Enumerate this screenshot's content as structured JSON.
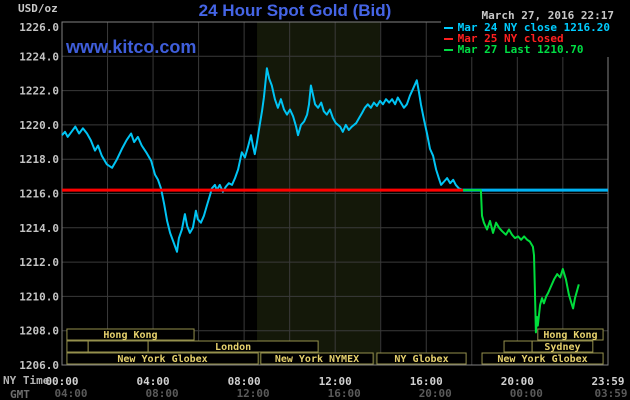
{
  "header": {
    "units_label": "USD/oz",
    "title": "24 Hour Spot Gold (Bid)",
    "datetime": "March 27, 2016 22:17",
    "watermark": "www.kitco.com"
  },
  "colors": {
    "title": "#4565e6",
    "logo": "#3f5edb",
    "background": "#000000",
    "plot_border": "#828282",
    "grid": "#3a3a3a",
    "band": "#141809",
    "y_tick": "#c4c4c4",
    "ny_tick": "#d0d0d0",
    "gmt_tick": "#5a5a5a",
    "session_border": "#95904d",
    "session_text": "#e6d16d"
  },
  "legend": [
    {
      "label": "Mar 24 NY close 1216.20",
      "color": "#00ccff"
    },
    {
      "label": "Mar 25 NY closed",
      "color": "#ff2020"
    },
    {
      "label": "Mar 27 Last 1210.70",
      "color": "#00dd44"
    }
  ],
  "axis": {
    "ny_time_label": "NY Time",
    "gmt_label": "GMT",
    "tick_minutes": [
      0,
      240,
      480,
      720,
      960,
      1200,
      1439
    ],
    "ny_ticks": [
      "00:00",
      "04:00",
      "08:00",
      "12:00",
      "16:00",
      "20:00",
      "23:59"
    ],
    "gmt_ticks": [
      "04:00",
      "08:00",
      "12:00",
      "16:00",
      "20:00",
      "00:00",
      "03:59"
    ]
  },
  "sessions": {
    "rows": [
      {
        "boxes": [
          {
            "label": "Hong Kong",
            "start": 13,
            "end": 348
          },
          {
            "label": "Hong Kong",
            "start": 1254,
            "end": 1426
          }
        ]
      },
      {
        "boxes": [
          {
            "label": "",
            "start": 13,
            "end": 69
          },
          {
            "label": "",
            "start": 69,
            "end": 227
          },
          {
            "label": "London",
            "start": 227,
            "end": 675
          },
          {
            "label": "",
            "start": 1165,
            "end": 1239
          },
          {
            "label": "Sydney",
            "start": 1239,
            "end": 1399
          }
        ]
      },
      {
        "boxes": [
          {
            "label": "New York Globex",
            "start": 13,
            "end": 517
          },
          {
            "label": "New York NYMEX",
            "start": 524,
            "end": 820
          },
          {
            "label": "NY Globex",
            "start": 830,
            "end": 1065
          },
          {
            "label": "New York Globex",
            "start": 1107,
            "end": 1426
          }
        ]
      }
    ]
  },
  "chart_data": {
    "type": "line",
    "title": "24 Hour Spot Gold (Bid)",
    "xlabel": "NY Time",
    "ylabel": "USD/oz",
    "ylim": [
      1206.0,
      1226.0
    ],
    "y_tick_step": 2.0,
    "x_range_minutes": [
      0,
      1439
    ],
    "grid": true,
    "grid_x_step_minutes": 120,
    "highlight_band_minutes": [
      514,
      838
    ],
    "last_price": 1210.7,
    "prev_close": 1216.2,
    "reference_lines": [
      {
        "name": "mar25-ny-closed",
        "value": 1216.2,
        "color": "#ff0000",
        "from_minute": 0,
        "to_minute": 1057,
        "width": 3
      },
      {
        "name": "mar24-ny-close",
        "value": 1216.2,
        "color": "#00b2f2",
        "from_minute": 1057,
        "to_minute": 1439,
        "width": 3
      }
    ],
    "series": [
      {
        "name": "Mar 24",
        "color": "#00c4f4",
        "width": 2,
        "points": [
          [
            0,
            1219.4
          ],
          [
            8,
            1219.6
          ],
          [
            15,
            1219.3
          ],
          [
            25,
            1219.6
          ],
          [
            35,
            1219.9
          ],
          [
            45,
            1219.5
          ],
          [
            55,
            1219.8
          ],
          [
            66,
            1219.5
          ],
          [
            76,
            1219.1
          ],
          [
            87,
            1218.5
          ],
          [
            95,
            1218.8
          ],
          [
            105,
            1218.2
          ],
          [
            118,
            1217.7
          ],
          [
            132,
            1217.5
          ],
          [
            145,
            1218.0
          ],
          [
            158,
            1218.6
          ],
          [
            170,
            1219.1
          ],
          [
            182,
            1219.5
          ],
          [
            190,
            1219.0
          ],
          [
            200,
            1219.3
          ],
          [
            210,
            1218.8
          ],
          [
            222,
            1218.4
          ],
          [
            235,
            1217.9
          ],
          [
            245,
            1217.1
          ],
          [
            253,
            1216.8
          ],
          [
            261,
            1216.3
          ],
          [
            269,
            1215.4
          ],
          [
            277,
            1214.4
          ],
          [
            285,
            1213.7
          ],
          [
            295,
            1213.1
          ],
          [
            303,
            1212.6
          ],
          [
            308,
            1213.4
          ],
          [
            316,
            1213.9
          ],
          [
            324,
            1214.8
          ],
          [
            330,
            1214.1
          ],
          [
            337,
            1213.7
          ],
          [
            345,
            1214.0
          ],
          [
            353,
            1215.0
          ],
          [
            358,
            1214.5
          ],
          [
            366,
            1214.3
          ],
          [
            374,
            1214.7
          ],
          [
            382,
            1215.3
          ],
          [
            390,
            1215.9
          ],
          [
            395,
            1216.3
          ],
          [
            403,
            1216.5
          ],
          [
            408,
            1216.2
          ],
          [
            416,
            1216.5
          ],
          [
            424,
            1216.1
          ],
          [
            432,
            1216.4
          ],
          [
            440,
            1216.6
          ],
          [
            448,
            1216.5
          ],
          [
            456,
            1216.9
          ],
          [
            464,
            1217.4
          ],
          [
            474,
            1218.4
          ],
          [
            482,
            1218.1
          ],
          [
            490,
            1218.7
          ],
          [
            498,
            1219.4
          ],
          [
            503,
            1218.8
          ],
          [
            508,
            1218.3
          ],
          [
            514,
            1219.0
          ],
          [
            519,
            1219.7
          ],
          [
            527,
            1220.8
          ],
          [
            532,
            1221.6
          ],
          [
            540,
            1223.3
          ],
          [
            546,
            1222.7
          ],
          [
            553,
            1222.3
          ],
          [
            561,
            1221.5
          ],
          [
            569,
            1221.0
          ],
          [
            577,
            1221.5
          ],
          [
            585,
            1220.9
          ],
          [
            593,
            1220.6
          ],
          [
            601,
            1220.9
          ],
          [
            609,
            1220.5
          ],
          [
            617,
            1219.9
          ],
          [
            622,
            1219.4
          ],
          [
            630,
            1220.0
          ],
          [
            638,
            1220.2
          ],
          [
            646,
            1220.6
          ],
          [
            651,
            1221.2
          ],
          [
            656,
            1222.3
          ],
          [
            662,
            1221.7
          ],
          [
            667,
            1221.2
          ],
          [
            675,
            1221.0
          ],
          [
            683,
            1221.3
          ],
          [
            690,
            1220.8
          ],
          [
            698,
            1220.6
          ],
          [
            706,
            1220.9
          ],
          [
            714,
            1220.4
          ],
          [
            722,
            1220.1
          ],
          [
            733,
            1219.9
          ],
          [
            740,
            1219.6
          ],
          [
            748,
            1220.0
          ],
          [
            756,
            1219.7
          ],
          [
            764,
            1219.9
          ],
          [
            775,
            1220.1
          ],
          [
            783,
            1220.4
          ],
          [
            791,
            1220.7
          ],
          [
            798,
            1221.0
          ],
          [
            806,
            1221.2
          ],
          [
            814,
            1221.0
          ],
          [
            822,
            1221.3
          ],
          [
            830,
            1221.1
          ],
          [
            838,
            1221.4
          ],
          [
            846,
            1221.2
          ],
          [
            854,
            1221.5
          ],
          [
            862,
            1221.3
          ],
          [
            870,
            1221.5
          ],
          [
            878,
            1221.2
          ],
          [
            885,
            1221.6
          ],
          [
            893,
            1221.3
          ],
          [
            901,
            1221.0
          ],
          [
            909,
            1221.2
          ],
          [
            917,
            1221.7
          ],
          [
            925,
            1222.1
          ],
          [
            935,
            1222.6
          ],
          [
            941,
            1221.9
          ],
          [
            946,
            1221.2
          ],
          [
            954,
            1220.3
          ],
          [
            962,
            1219.5
          ],
          [
            970,
            1218.6
          ],
          [
            978,
            1218.2
          ],
          [
            986,
            1217.4
          ],
          [
            993,
            1216.9
          ],
          [
            999,
            1216.5
          ],
          [
            1007,
            1216.7
          ],
          [
            1015,
            1216.9
          ],
          [
            1023,
            1216.6
          ],
          [
            1031,
            1216.8
          ],
          [
            1038,
            1216.5
          ],
          [
            1046,
            1216.3
          ],
          [
            1057,
            1216.2
          ]
        ]
      },
      {
        "name": "Mar 27",
        "color": "#00dd3c",
        "width": 2,
        "points": [
          [
            1057,
            1216.2
          ],
          [
            1104,
            1216.2
          ],
          [
            1107,
            1214.7
          ],
          [
            1112,
            1214.3
          ],
          [
            1120,
            1213.9
          ],
          [
            1128,
            1214.4
          ],
          [
            1136,
            1213.7
          ],
          [
            1144,
            1214.3
          ],
          [
            1152,
            1214.0
          ],
          [
            1160,
            1213.8
          ],
          [
            1170,
            1213.6
          ],
          [
            1178,
            1213.9
          ],
          [
            1186,
            1213.6
          ],
          [
            1194,
            1213.4
          ],
          [
            1202,
            1213.5
          ],
          [
            1210,
            1213.3
          ],
          [
            1218,
            1213.5
          ],
          [
            1226,
            1213.3
          ],
          [
            1233,
            1213.2
          ],
          [
            1241,
            1212.9
          ],
          [
            1244,
            1212.4
          ],
          [
            1246,
            1210.6
          ],
          [
            1249,
            1207.9
          ],
          [
            1252,
            1208.8
          ],
          [
            1254,
            1208.3
          ],
          [
            1260,
            1209.5
          ],
          [
            1265,
            1209.9
          ],
          [
            1270,
            1209.6
          ],
          [
            1276,
            1210.0
          ],
          [
            1281,
            1210.2
          ],
          [
            1289,
            1210.6
          ],
          [
            1297,
            1211.0
          ],
          [
            1305,
            1211.3
          ],
          [
            1313,
            1211.1
          ],
          [
            1320,
            1211.6
          ],
          [
            1328,
            1211.0
          ],
          [
            1336,
            1210.1
          ],
          [
            1344,
            1209.5
          ],
          [
            1347,
            1209.3
          ],
          [
            1352,
            1209.9
          ],
          [
            1357,
            1210.3
          ],
          [
            1362,
            1210.7
          ]
        ]
      }
    ]
  }
}
